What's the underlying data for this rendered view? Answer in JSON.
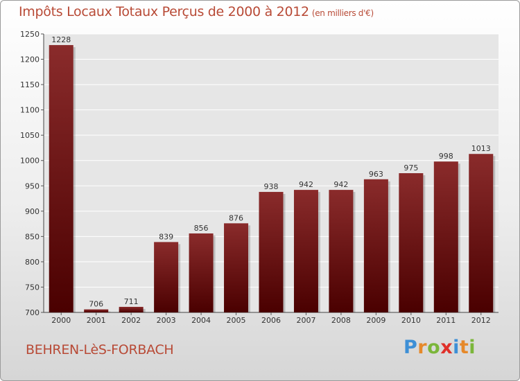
{
  "chart_data": {
    "type": "bar",
    "title": "Impôts Locaux Totaux Perçus de 2000 à 2012",
    "subtitle": "(en milliers d'€)",
    "categories": [
      "2000",
      "2001",
      "2002",
      "2003",
      "2004",
      "2005",
      "2006",
      "2007",
      "2008",
      "2009",
      "2010",
      "2011",
      "2012"
    ],
    "values": [
      1228,
      706,
      711,
      839,
      856,
      876,
      938,
      942,
      942,
      963,
      975,
      998,
      1013
    ],
    "ylim": [
      700,
      1250
    ],
    "yticks": [
      700,
      750,
      800,
      850,
      900,
      950,
      1000,
      1050,
      1100,
      1150,
      1200,
      1250
    ],
    "xlabel": "",
    "ylabel": "",
    "grid": true,
    "bar_color_top": "#8a2b2b",
    "bar_color_bottom": "#4a0000"
  },
  "footer": {
    "town": "BEHREN-LèS-FORBACH",
    "brand_letters": [
      {
        "ch": "P",
        "color": "#3d8fd6"
      },
      {
        "ch": "r",
        "color": "#e6892a"
      },
      {
        "ch": "o",
        "color": "#7bb63a"
      },
      {
        "ch": "x",
        "color": "#e0302a"
      },
      {
        "ch": "i",
        "color": "#3d8fd6"
      },
      {
        "ch": "t",
        "color": "#e6892a"
      },
      {
        "ch": "i",
        "color": "#7bb63a"
      }
    ]
  }
}
